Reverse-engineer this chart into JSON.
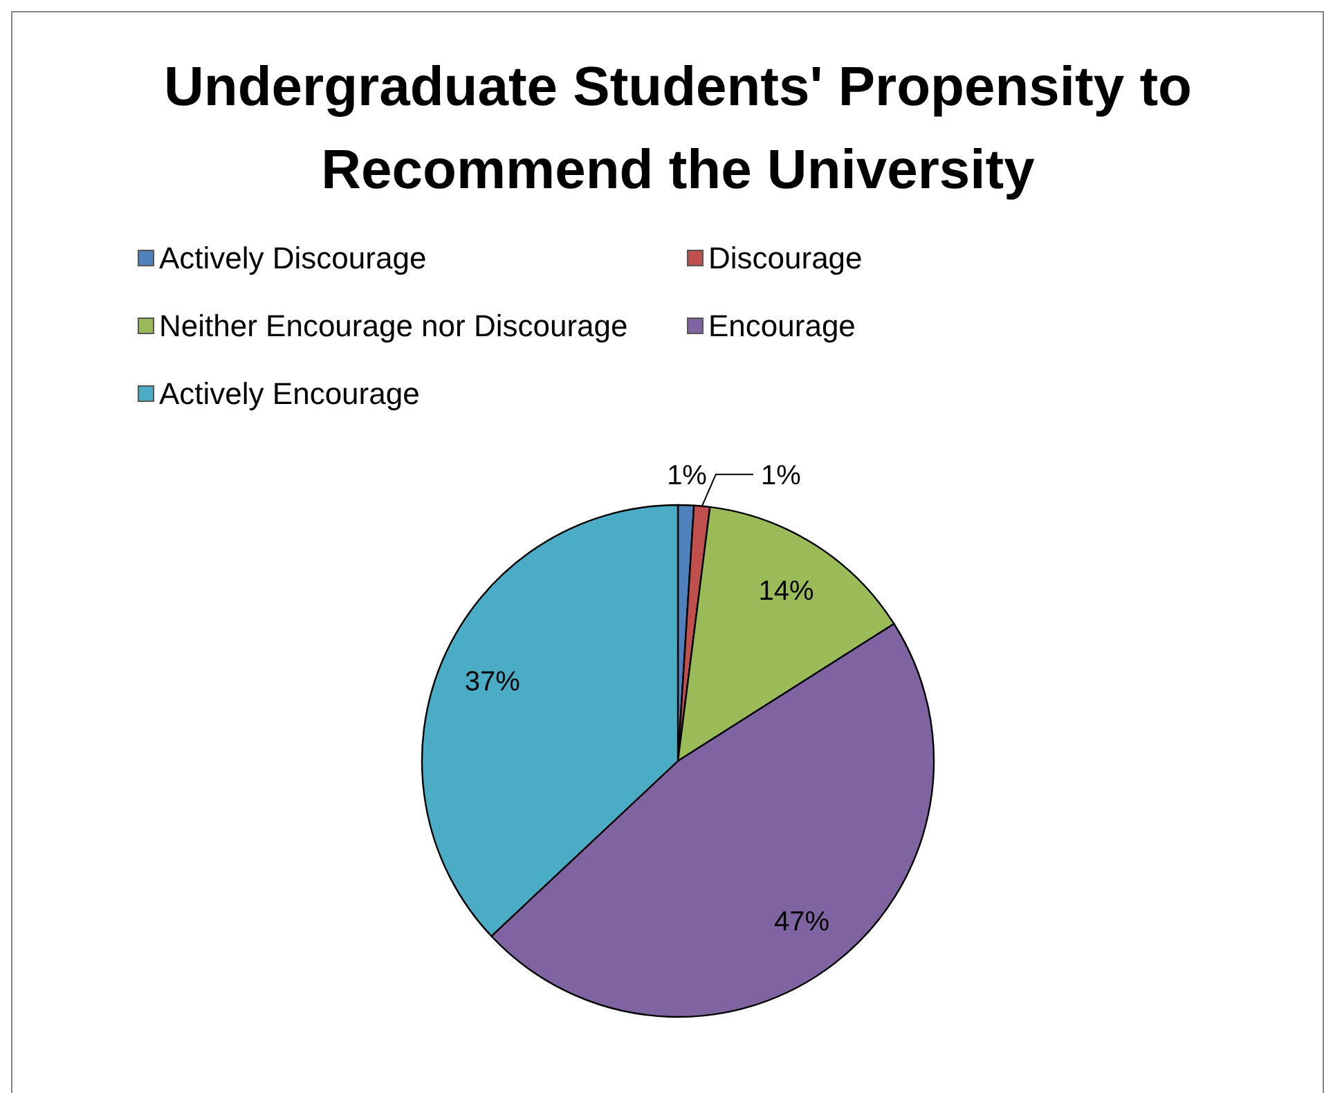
{
  "chart_data": {
    "type": "pie",
    "title": "Undergraduate Students' Propensity to Recommend the University",
    "categories": [
      "Actively Discourage",
      "Discourage",
      "Neither Encourage nor Discourage",
      "Encourage",
      "Actively Encourage"
    ],
    "values": [
      1,
      1,
      14,
      47,
      37
    ],
    "value_labels": [
      "1%",
      "1%",
      "14%",
      "47%",
      "37%"
    ],
    "colors": [
      "#4f81bd",
      "#c0504d",
      "#9bbb59",
      "#8064a2",
      "#4bacc6"
    ],
    "legend": "top"
  }
}
